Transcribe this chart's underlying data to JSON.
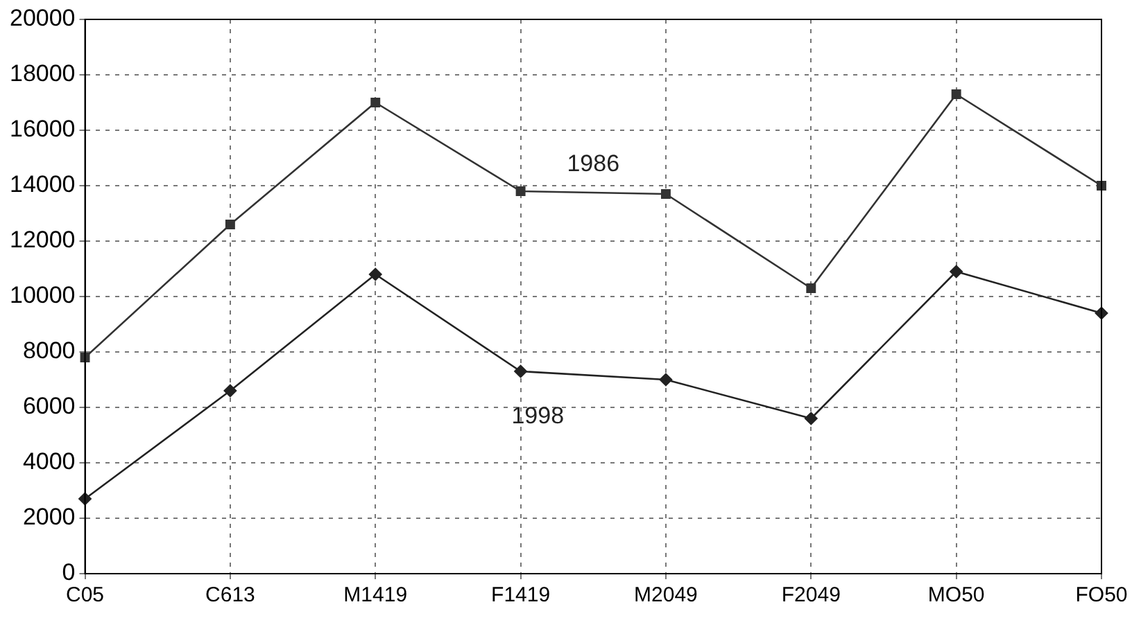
{
  "chart_data": {
    "type": "line",
    "categories": [
      "C05",
      "C613",
      "M1419",
      "F1419",
      "M2049",
      "F2049",
      "MO50",
      "FO50"
    ],
    "series": [
      {
        "name": "1986",
        "color": "#333333",
        "marker": "square",
        "values": [
          7800,
          12600,
          17000,
          13800,
          13700,
          10300,
          17300,
          14000
        ]
      },
      {
        "name": "1998",
        "color": "#222222",
        "marker": "diamond",
        "values": [
          2700,
          6600,
          10800,
          7300,
          7000,
          5600,
          10900,
          9400
        ]
      }
    ],
    "ylim": [
      0,
      20000
    ],
    "yticks": [
      0,
      2000,
      4000,
      6000,
      8000,
      10000,
      12000,
      14000,
      16000,
      18000,
      20000
    ],
    "grid": true,
    "legend": false,
    "line_style": "solid"
  }
}
